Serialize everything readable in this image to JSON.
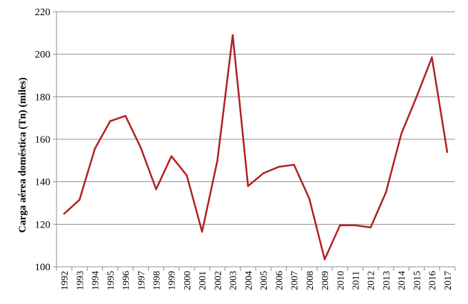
{
  "chart_data": {
    "type": "line",
    "title": "",
    "xlabel": "",
    "ylabel": "Carga aérea doméstica (Tn) (miles)",
    "ylim": [
      100,
      220
    ],
    "yticks": [
      100,
      120,
      140,
      160,
      180,
      200,
      220
    ],
    "grid": true,
    "legend": "none",
    "categories": [
      "1992",
      "1993",
      "1994",
      "1995",
      "1996",
      "1997",
      "1998",
      "1999",
      "2000",
      "2001",
      "2002",
      "2003",
      "2004",
      "2005",
      "2006",
      "2007",
      "2008",
      "2009",
      "2010",
      "2011",
      "2012",
      "2013",
      "2014",
      "2015",
      "2016",
      "2017"
    ],
    "series": [
      {
        "color": "#b22222",
        "values": [
          125,
          131.5,
          155.5,
          168.5,
          171,
          156,
          136.5,
          152,
          143,
          116.5,
          150,
          209,
          138,
          144,
          147,
          148,
          132,
          103.5,
          119.5,
          119.5,
          118.5,
          135,
          162.5,
          180,
          198.5,
          154
        ]
      }
    ]
  }
}
